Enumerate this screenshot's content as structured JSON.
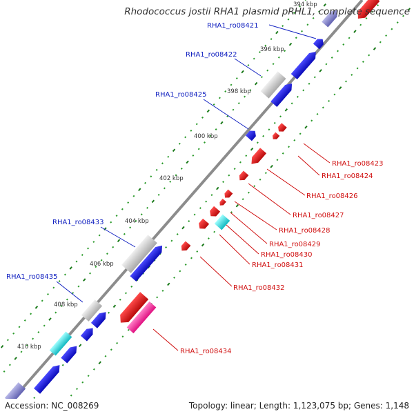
{
  "title": "Rhodococcus jostii RHA1 plasmid pRHL1, complete sequence",
  "footer": {
    "accession": "Accession: NC_008269",
    "topology": "Topology: linear; Length: 1,123,075 bp; Genes: 1,148"
  },
  "colors": {
    "backbone": "#8a8a8a",
    "forward_gene": "#1010e0",
    "reverse_gene": "#e01010",
    "pseudo_gene": "#c8c8c8",
    "rna_gene": "#20e0e0",
    "pink_gene": "#f040a0",
    "label_forward": "#1020c0",
    "label_reverse": "#d01010",
    "tick": "#1a8a1a"
  },
  "scale": {
    "ticks": [
      {
        "label": "394 kbp"
      },
      {
        "label": "396 kbp"
      },
      {
        "label": "398 kbp"
      },
      {
        "label": "400 kbp"
      },
      {
        "label": "402 kbp"
      },
      {
        "label": "404 kbp"
      },
      {
        "label": "406 kbp"
      },
      {
        "label": "408 kbp"
      },
      {
        "label": "410 kbp"
      }
    ]
  },
  "labels": {
    "forward": [
      {
        "name": "RHA1_ro08421"
      },
      {
        "name": "RHA1_ro08422"
      },
      {
        "name": "RHA1_ro08425"
      },
      {
        "name": "RHA1_ro08433"
      },
      {
        "name": "RHA1_ro08435"
      }
    ],
    "reverse": [
      {
        "name": "RHA1_ro08423"
      },
      {
        "name": "RHA1_ro08424"
      },
      {
        "name": "RHA1_ro08426"
      },
      {
        "name": "RHA1_ro08427"
      },
      {
        "name": "RHA1_ro08428"
      },
      {
        "name": "RHA1_ro08429"
      },
      {
        "name": "RHA1_ro08430"
      },
      {
        "name": "RHA1_ro08431"
      },
      {
        "name": "RHA1_ro08432"
      },
      {
        "name": "RHA1_ro08434"
      }
    ]
  }
}
